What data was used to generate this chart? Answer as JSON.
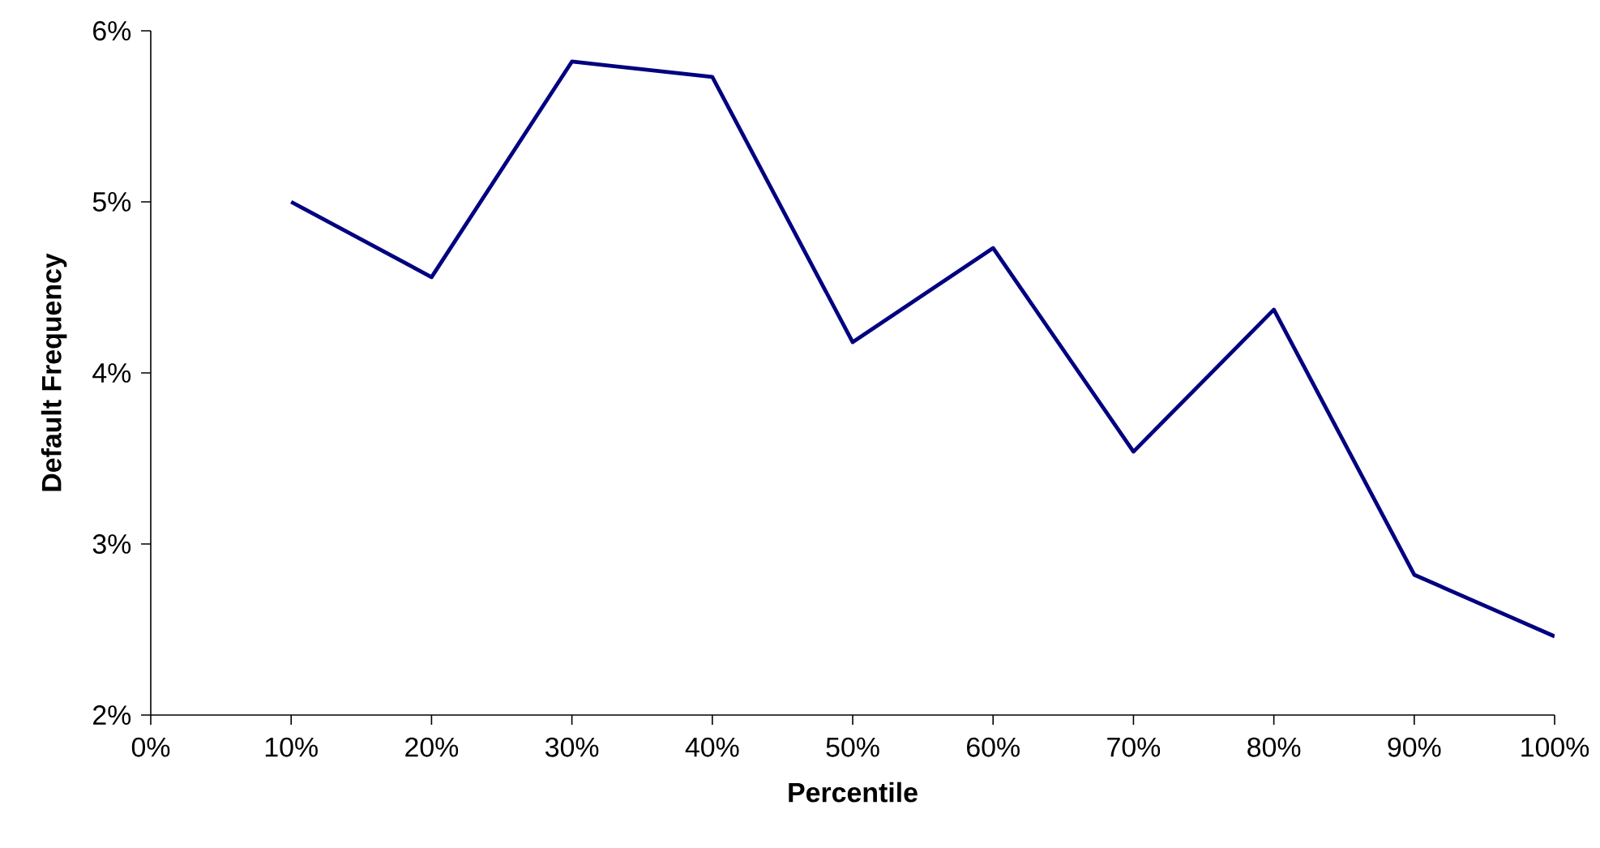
{
  "chart_data": {
    "type": "line",
    "xlabel": "Percentile",
    "ylabel": "Default Frequency",
    "x": [
      10,
      20,
      30,
      40,
      50,
      60,
      70,
      80,
      90,
      100
    ],
    "series": [
      {
        "color": "#000080",
        "values": [
          5.0,
          4.56,
          5.82,
          5.73,
          4.18,
          4.73,
          3.54,
          4.37,
          2.82,
          2.46
        ]
      }
    ],
    "xlim": [
      0,
      100
    ],
    "xticks": [
      {
        "value": 0,
        "label": "0%"
      },
      {
        "value": 10,
        "label": "10%"
      },
      {
        "value": 20,
        "label": "20%"
      },
      {
        "value": 30,
        "label": "30%"
      },
      {
        "value": 40,
        "label": "40%"
      },
      {
        "value": 50,
        "label": "50%"
      },
      {
        "value": 60,
        "label": "60%"
      },
      {
        "value": 70,
        "label": "70%"
      },
      {
        "value": 80,
        "label": "80%"
      },
      {
        "value": 90,
        "label": "90%"
      },
      {
        "value": 100,
        "label": "100%"
      }
    ],
    "ylim": [
      2,
      6
    ],
    "yticks": [
      {
        "value": 2,
        "label": "2%"
      },
      {
        "value": 3,
        "label": "3%"
      },
      {
        "value": 4,
        "label": "4%"
      },
      {
        "value": 5,
        "label": "5%"
      },
      {
        "value": 6,
        "label": "6%"
      }
    ],
    "grid": false,
    "legend": false,
    "marker": "none",
    "line_style": "solid"
  }
}
